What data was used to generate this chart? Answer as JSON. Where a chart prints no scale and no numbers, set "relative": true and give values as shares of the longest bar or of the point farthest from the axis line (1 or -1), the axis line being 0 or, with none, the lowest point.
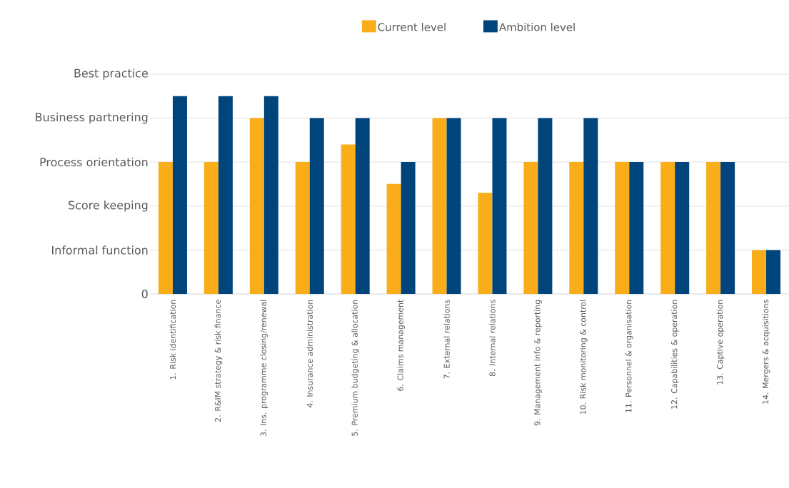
{
  "chart_data": {
    "type": "bar",
    "relative": true,
    "categories": [
      "1. Risk identification",
      "2. R&IM strategy & risk finance",
      "3. Ins. programme closing/renewal",
      "4. Insurance administration",
      "5. Premium budgeting & allocation",
      "6. Claims management",
      "7. External relations",
      "8. Internal relations",
      "9. Management info & reporting",
      "10. Risk monitoring & control",
      "11. Personnel &  organisation",
      "12. Capabilities & operation",
      "13. Captive operation",
      "14. Mergers & acquisitions"
    ],
    "series": [
      {
        "name": "Current level",
        "color": "#f9ad19",
        "values": [
          0.667,
          0.667,
          0.889,
          0.667,
          0.756,
          0.556,
          0.889,
          0.511,
          0.667,
          0.667,
          0.667,
          0.667,
          0.667,
          0.222
        ]
      },
      {
        "name": "Ambition level",
        "color": "#00447c",
        "values": [
          1,
          1,
          1,
          0.889,
          0.889,
          0.667,
          0.889,
          0.889,
          0.889,
          0.889,
          0.667,
          0.667,
          0.667,
          0.222
        ]
      }
    ],
    "ref_lines": [
      {
        "axis": "y",
        "value": 0,
        "label": "0"
      },
      {
        "axis": "y",
        "value": 0.222,
        "label": "Informal function"
      },
      {
        "axis": "y",
        "value": 0.444,
        "label": "Score keeping"
      },
      {
        "axis": "y",
        "value": 0.667,
        "label": "Process orientation"
      },
      {
        "axis": "y",
        "value": 0.889,
        "label": "Business partnering"
      },
      {
        "axis": "y",
        "value": 1.111,
        "label": "Best practice"
      }
    ],
    "legend": "top"
  }
}
